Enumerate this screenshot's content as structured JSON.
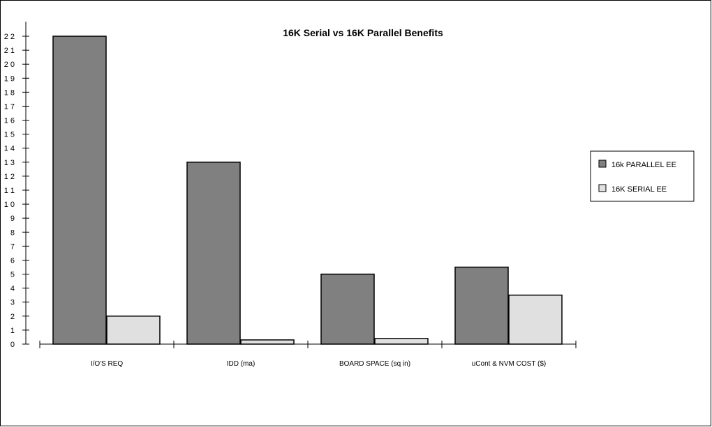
{
  "chart_data": {
    "type": "bar",
    "title": "16K Serial vs 16K Parallel Benefits",
    "xlabel": "",
    "ylabel": "",
    "categories": [
      "I/O'S REQ",
      "IDD  (ma)",
      "BOARD SPACE (sq in)",
      "uCont & NVM COST ($)"
    ],
    "series": [
      {
        "name": "16k PARALLEL EE",
        "color": "#808080",
        "values": [
          22,
          13,
          5,
          5.5
        ]
      },
      {
        "name": "16K SERIAL EE",
        "color": "#e0e0e0",
        "values": [
          2,
          0.3,
          0.4,
          3.5
        ]
      }
    ],
    "ylim": [
      0,
      22
    ],
    "yticks": [
      0,
      1,
      2,
      3,
      4,
      5,
      6,
      7,
      8,
      9,
      10,
      11,
      12,
      13,
      14,
      15,
      16,
      17,
      18,
      19,
      20,
      21,
      22
    ],
    "ytick_labels": [
      "0",
      "1",
      "2",
      "3",
      "4",
      "5",
      "6",
      "7",
      "8",
      "9",
      "1 0",
      "1 1",
      "1 2",
      "1 3",
      "1 4",
      "1 5",
      "1 6",
      "1 7",
      "1 8",
      "1 9",
      "2 0",
      "2 1",
      "2 2"
    ],
    "grid": false,
    "legend_position": "right"
  }
}
